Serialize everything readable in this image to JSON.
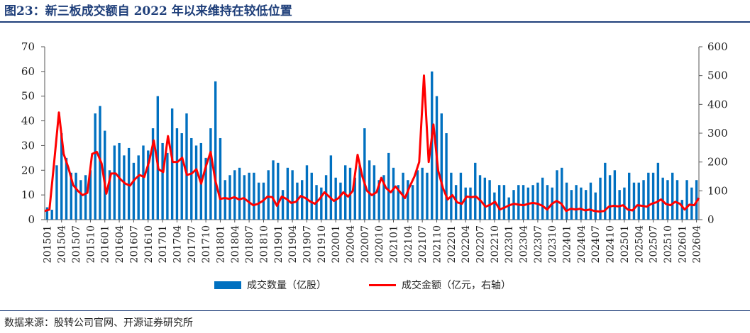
{
  "title": "图23：新三板成交额自 2022 年以来维持在较低位置",
  "source": "数据来源：股转公司官网、开源证券研究所",
  "colors": {
    "bar": "#0070c0",
    "line": "#ff0000",
    "title": "#1f3f7a"
  },
  "chart_data": {
    "type": "bar+line",
    "grid": false,
    "legend_position": "bottom",
    "left_axis": {
      "min": 0,
      "max": 70,
      "ticks": [
        0,
        10,
        20,
        30,
        40,
        50,
        60,
        70
      ]
    },
    "right_axis": {
      "min": 0,
      "max": 600,
      "ticks": [
        0,
        100,
        200,
        300,
        400,
        500,
        600
      ]
    },
    "x_tick_labels": [
      "201501",
      "201504",
      "201507",
      "201510",
      "201601",
      "201604",
      "201607",
      "201610",
      "201701",
      "201704",
      "201707",
      "201710",
      "201801",
      "201804",
      "201807",
      "201810",
      "201901",
      "201904",
      "201907",
      "201910",
      "202001",
      "202004",
      "202007",
      "202010",
      "202101",
      "202104",
      "202107",
      "202110",
      "202201",
      "202204",
      "202207",
      "202210",
      "202301",
      "202304",
      "202307",
      "202310",
      "202401",
      "202404",
      "202407",
      "202410",
      "202501",
      "202504",
      "202507",
      "202510",
      "202601",
      "202604"
    ],
    "series": [
      {
        "name": "成交数量（亿股）",
        "type": "bar",
        "axis": "left",
        "values": [
          5,
          4,
          22,
          35,
          25,
          19,
          19,
          16,
          18,
          20,
          43,
          46,
          36,
          20,
          30,
          31,
          26,
          29,
          23,
          26,
          30,
          28,
          37,
          50,
          31,
          27,
          45,
          37,
          35,
          43,
          33,
          30,
          31,
          25,
          37,
          56,
          33,
          16,
          18,
          20,
          21,
          18,
          19,
          19,
          15,
          15,
          20,
          24,
          23,
          12,
          21,
          20,
          15,
          16,
          22,
          19,
          14,
          13,
          18,
          26,
          17,
          15,
          22,
          21,
          17,
          22,
          37,
          24,
          22,
          16,
          18,
          27,
          21,
          14,
          19,
          16,
          14,
          20,
          21,
          19,
          60,
          50,
          43,
          35,
          19,
          14,
          19,
          13,
          13,
          23,
          18,
          17,
          16,
          11,
          14,
          14,
          9,
          12,
          14,
          14,
          13,
          14,
          15,
          17,
          14,
          13,
          20,
          21,
          15,
          12,
          14,
          13,
          12,
          15,
          11,
          17,
          23,
          18,
          20,
          12,
          13,
          19,
          15,
          15,
          16,
          19,
          19,
          23,
          17,
          16,
          19,
          16,
          8,
          16,
          13,
          16
        ]
      },
      {
        "name": "成交金额（亿元，右轴）",
        "type": "line",
        "axis": "right",
        "values": [
          30,
          35,
          200,
          372,
          228,
          180,
          120,
          100,
          85,
          93,
          228,
          235,
          195,
          90,
          160,
          160,
          140,
          125,
          118,
          140,
          155,
          148,
          200,
          275,
          175,
          165,
          290,
          200,
          200,
          215,
          155,
          160,
          175,
          125,
          185,
          235,
          135,
          72,
          75,
          72,
          78,
          70,
          75,
          62,
          50,
          55,
          65,
          80,
          78,
          48,
          80,
          72,
          58,
          62,
          82,
          75,
          63,
          55,
          72,
          95,
          80,
          65,
          75,
          95,
          80,
          100,
          225,
          150,
          100,
          85,
          95,
          145,
          110,
          95,
          115,
          95,
          75,
          115,
          150,
          200,
          500,
          200,
          330,
          170,
          110,
          70,
          85,
          60,
          55,
          80,
          78,
          80,
          65,
          45,
          52,
          62,
          35,
          42,
          50,
          55,
          52,
          50,
          55,
          58,
          55,
          48,
          35,
          55,
          65,
          55,
          30,
          38,
          35,
          38,
          32,
          35,
          30,
          28,
          30,
          45,
          48,
          46,
          50,
          35,
          32,
          50,
          48,
          45,
          55,
          60,
          70,
          55,
          50,
          62,
          55,
          35,
          52,
          50,
          75
        ]
      }
    ]
  }
}
